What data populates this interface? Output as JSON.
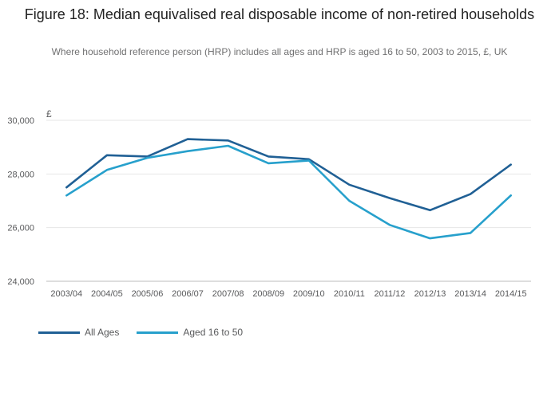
{
  "colors": {
    "all_ages": "#206095",
    "aged_16_50": "#27a0cc",
    "grid": "#e6e6e6",
    "axis": "#bcbcbc"
  },
  "chart_data": {
    "type": "line",
    "title": "Figure 18: Median equivalised real disposable income of non-retired households",
    "subtitle": "Where household reference person (HRP) includes all ages and HRP is aged 16 to 50, 2003 to 2015, £, UK",
    "ylabel": "£",
    "xlabel": "",
    "categories": [
      "2003/04",
      "2004/05",
      "2005/06",
      "2006/07",
      "2007/08",
      "2008/09",
      "2009/10",
      "2010/11",
      "2011/12",
      "2012/13",
      "2013/14",
      "2014/15"
    ],
    "yticks": [
      "24,000",
      "26,000",
      "28,000",
      "30,000"
    ],
    "ylim": [
      24000,
      30000
    ],
    "grid": true,
    "legend_position": "bottom-left",
    "series": [
      {
        "name": "All Ages",
        "color": "#206095",
        "values": [
          27500,
          28700,
          28650,
          29300,
          29250,
          28650,
          28550,
          27600,
          27100,
          26650,
          27250,
          28350
        ]
      },
      {
        "name": "Aged 16 to 50",
        "color": "#27a0cc",
        "values": [
          27200,
          28150,
          28600,
          28850,
          29050,
          28400,
          28500,
          27000,
          26100,
          25600,
          25800,
          27200
        ]
      }
    ]
  }
}
